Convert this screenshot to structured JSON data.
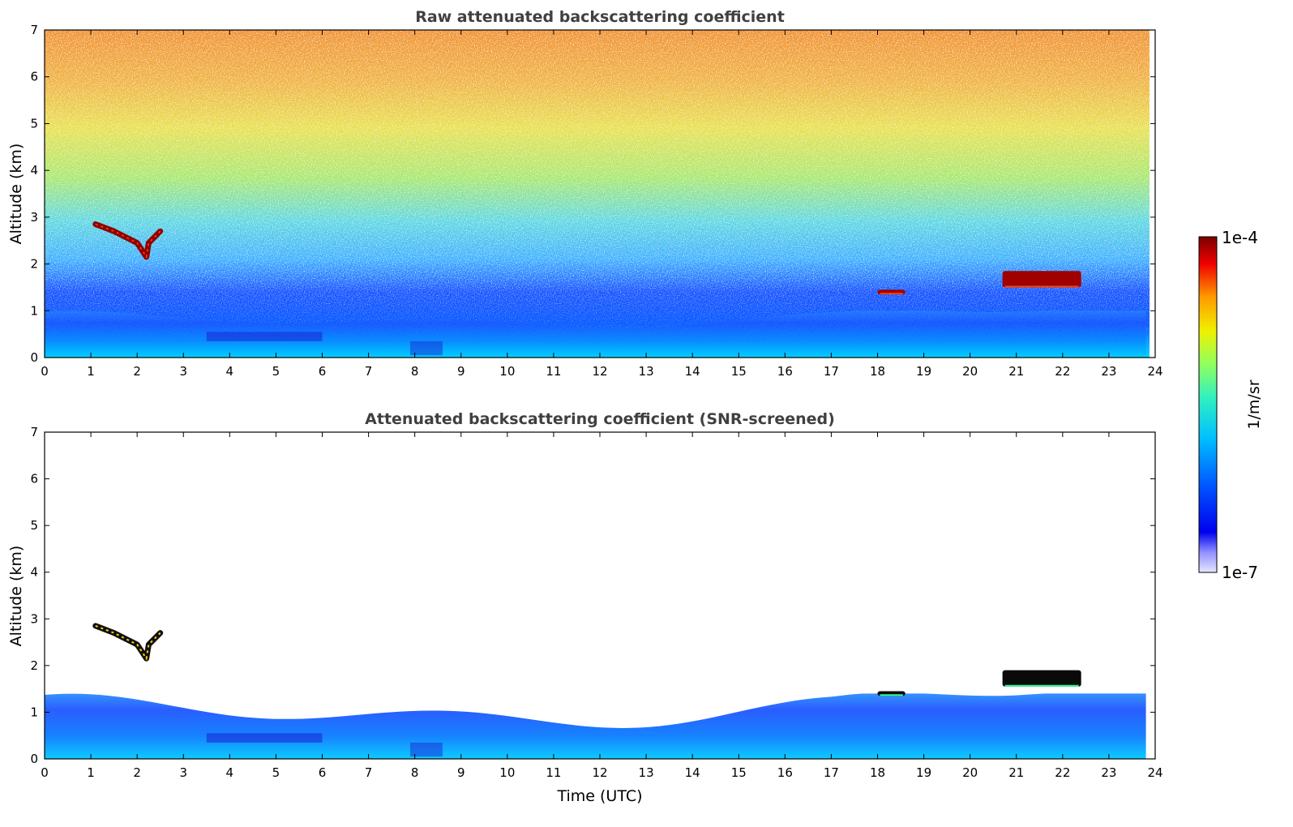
{
  "chart_data": [
    {
      "type": "heatmap",
      "title": "Raw attenuated backscattering coefficient",
      "xlabel": "",
      "ylabel": "Altitude (km)",
      "xlim": [
        0,
        24
      ],
      "ylim": [
        0,
        7
      ],
      "x_ticks": [
        "0",
        "1",
        "2",
        "3",
        "4",
        "5",
        "6",
        "7",
        "8",
        "9",
        "10",
        "11",
        "12",
        "13",
        "14",
        "15",
        "16",
        "17",
        "18",
        "19",
        "20",
        "21",
        "22",
        "23",
        "24"
      ],
      "y_ticks": [
        "0",
        "1",
        "2",
        "3",
        "4",
        "5",
        "6",
        "7"
      ],
      "data_end_hour": 23.8,
      "features": [
        {
          "name": "boundary layer",
          "from_hour": 0,
          "to_hour": 23.8,
          "top_km": [
            0.6,
            1.0
          ]
        },
        {
          "name": "elevated aerosol layer",
          "hours": [
            1.1,
            2.5
          ],
          "altitude_km": [
            2.1,
            2.9
          ]
        },
        {
          "name": "cloud",
          "hours": [
            18.0,
            18.6
          ],
          "altitude_km": [
            1.35,
            1.45
          ]
        },
        {
          "name": "cloud",
          "hours": [
            20.7,
            22.4
          ],
          "altitude_km": [
            1.5,
            1.85
          ]
        }
      ]
    },
    {
      "type": "heatmap",
      "title": "Attenuated backscattering coefficient (SNR-screened)",
      "xlabel": "Time (UTC)",
      "ylabel": "Altitude (km)",
      "xlim": [
        0,
        24
      ],
      "ylim": [
        0,
        7
      ],
      "x_ticks": [
        "0",
        "1",
        "2",
        "3",
        "4",
        "5",
        "6",
        "7",
        "8",
        "9",
        "10",
        "11",
        "12",
        "13",
        "14",
        "15",
        "16",
        "17",
        "18",
        "19",
        "20",
        "21",
        "22",
        "23",
        "24"
      ],
      "y_ticks": [
        "0",
        "1",
        "2",
        "3",
        "4",
        "5",
        "6",
        "7"
      ],
      "data_end_hour": 23.8,
      "features": [
        {
          "name": "boundary layer",
          "from_hour": 0,
          "to_hour": 23.8,
          "top_km": [
            0.6,
            1.4
          ]
        },
        {
          "name": "elevated aerosol layer",
          "hours": [
            1.1,
            2.5
          ],
          "altitude_km": [
            2.1,
            2.9
          ]
        },
        {
          "name": "cloud",
          "hours": [
            18.0,
            18.6
          ],
          "altitude_km": [
            1.35,
            1.45
          ]
        },
        {
          "name": "cloud",
          "hours": [
            20.7,
            22.4
          ],
          "altitude_km": [
            1.55,
            1.9
          ]
        }
      ]
    }
  ],
  "colorbar": {
    "label": "1/m/sr",
    "max_label": "1e-4",
    "min_label": "1e-7",
    "colors": [
      "#7f0000",
      "#b20000",
      "#e60000",
      "#ff2a00",
      "#ff6a00",
      "#ffab00",
      "#ffe000",
      "#d5ff1e",
      "#90ff61",
      "#4cffa3",
      "#1ef0d6",
      "#00c0ff",
      "#0080ff",
      "#0040ff",
      "#0000f0",
      "#3a3aff",
      "#8080ff",
      "#b8b8ff",
      "#e6e6ff"
    ]
  }
}
